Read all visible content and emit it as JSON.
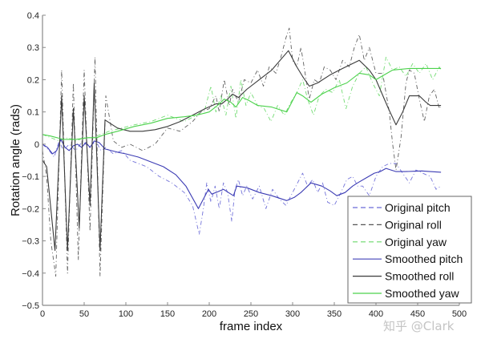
{
  "chart_data": {
    "type": "line",
    "title": "",
    "xlabel": "frame index",
    "ylabel": "Rotation angle (rads)",
    "xlim": [
      0,
      500
    ],
    "ylim": [
      -0.5,
      0.4
    ],
    "xticks": [
      0,
      50,
      100,
      150,
      200,
      250,
      300,
      350,
      400,
      450,
      500
    ],
    "yticks": [
      -0.5,
      -0.4,
      -0.3,
      -0.2,
      -0.1,
      0,
      0.1,
      0.2,
      0.3,
      0.4
    ],
    "xtick_labels": [
      "0",
      "50",
      "100",
      "150",
      "200",
      "250",
      "300",
      "350",
      "400",
      "450",
      "500"
    ],
    "ytick_labels": [
      "-0.5",
      "-0.4",
      "-0.3",
      "-0.2",
      "-0.1",
      "0",
      "0.1",
      "0.2",
      "0.3",
      "0.4"
    ],
    "grid": false,
    "legend_position": "lower right",
    "series": [
      {
        "name": "Original pitch",
        "style": "dashdot",
        "color": "#5a5ad2",
        "x": [
          0,
          8,
          14,
          20,
          25,
          32,
          40,
          48,
          56,
          64,
          70,
          76,
          85,
          95,
          105,
          115,
          125,
          140,
          155,
          170,
          180,
          188,
          193,
          197,
          202,
          207,
          212,
          217,
          222,
          227,
          231,
          235,
          240,
          245,
          252,
          260,
          268,
          276,
          284,
          292,
          300,
          306,
          312,
          318,
          324,
          330,
          336,
          342,
          350,
          358,
          365,
          372,
          378,
          384,
          392,
          400,
          408,
          416,
          424,
          432,
          440,
          448,
          456,
          465,
          472,
          478
        ],
        "y": [
          0.0,
          -0.02,
          -0.04,
          0.01,
          -0.02,
          0.0,
          -0.02,
          0.01,
          -0.01,
          0.01,
          -0.02,
          -0.01,
          -0.03,
          -0.02,
          -0.05,
          -0.06,
          -0.07,
          -0.1,
          -0.12,
          -0.15,
          -0.19,
          -0.28,
          -0.2,
          -0.12,
          -0.18,
          -0.13,
          -0.2,
          -0.12,
          -0.15,
          -0.24,
          -0.14,
          -0.11,
          -0.16,
          -0.13,
          -0.17,
          -0.13,
          -0.2,
          -0.14,
          -0.17,
          -0.19,
          -0.15,
          -0.12,
          -0.09,
          -0.13,
          -0.11,
          -0.15,
          -0.12,
          -0.18,
          -0.19,
          -0.15,
          -0.11,
          -0.1,
          -0.13,
          -0.13,
          -0.16,
          -0.1,
          -0.07,
          -0.06,
          -0.06,
          -0.09,
          -0.12,
          -0.08,
          -0.09,
          -0.1,
          -0.14,
          -0.13
        ]
      },
      {
        "name": "Original roll",
        "style": "dashdot",
        "color": "#444444",
        "x": [
          0,
          5,
          10,
          16,
          23,
          30,
          37,
          43,
          50,
          57,
          63,
          69,
          76,
          85,
          95,
          105,
          120,
          135,
          150,
          165,
          180,
          190,
          200,
          208,
          212,
          218,
          224,
          228,
          235,
          242,
          250,
          258,
          265,
          272,
          280,
          286,
          292,
          296,
          300,
          305,
          310,
          315,
          320,
          326,
          332,
          338,
          345,
          352,
          360,
          368,
          374,
          380,
          386,
          392,
          400,
          408,
          416,
          420,
          424,
          430,
          436,
          440,
          446,
          452,
          458,
          464,
          470,
          476,
          478
        ],
        "y": [
          -0.02,
          -0.1,
          -0.3,
          -0.41,
          0.23,
          -0.4,
          0.19,
          -0.36,
          0.23,
          -0.27,
          0.27,
          -0.41,
          0.15,
          0.01,
          -0.01,
          0.0,
          -0.02,
          0.0,
          0.05,
          0.04,
          0.07,
          0.1,
          0.11,
          0.15,
          0.1,
          0.2,
          0.12,
          0.17,
          0.13,
          0.2,
          0.19,
          0.23,
          0.18,
          0.24,
          0.22,
          0.27,
          0.33,
          0.36,
          0.26,
          0.24,
          0.3,
          0.22,
          0.14,
          0.2,
          0.19,
          0.24,
          0.23,
          0.2,
          0.26,
          0.24,
          0.3,
          0.34,
          0.26,
          0.3,
          0.22,
          0.22,
          0.1,
          0.0,
          -0.08,
          0.02,
          0.19,
          0.23,
          0.22,
          0.14,
          0.07,
          0.15,
          0.17,
          0.11,
          0.12
        ]
      },
      {
        "name": "Original yaw",
        "style": "dashdot",
        "color": "#5cd65c",
        "x": [
          0,
          10,
          20,
          30,
          40,
          50,
          60,
          70,
          80,
          95,
          110,
          130,
          150,
          170,
          185,
          195,
          202,
          208,
          214,
          220,
          226,
          232,
          238,
          244,
          250,
          258,
          266,
          274,
          282,
          290,
          298,
          305,
          312,
          318,
          325,
          332,
          340,
          348,
          356,
          364,
          372,
          380,
          388,
          396,
          404,
          412,
          420,
          428,
          436,
          444,
          452,
          460,
          468,
          476,
          478
        ],
        "y": [
          0.03,
          0.02,
          0.01,
          0.02,
          0.01,
          0.02,
          0.02,
          0.03,
          0.04,
          0.05,
          0.06,
          0.07,
          0.09,
          0.07,
          0.09,
          0.11,
          0.18,
          0.1,
          0.15,
          0.09,
          0.18,
          0.08,
          0.2,
          0.12,
          0.16,
          0.12,
          0.11,
          0.07,
          0.12,
          0.09,
          0.13,
          0.16,
          0.2,
          0.14,
          0.09,
          0.15,
          0.17,
          0.16,
          0.2,
          0.11,
          0.18,
          0.22,
          0.24,
          0.19,
          0.15,
          0.27,
          0.23,
          0.24,
          0.21,
          0.25,
          0.22,
          0.25,
          0.2,
          0.24,
          0.23
        ]
      },
      {
        "name": "Smoothed pitch",
        "style": "solid",
        "color": "#3c3cb4",
        "x": [
          0,
          6,
          12,
          17,
          22,
          27,
          32,
          37,
          42,
          47,
          52,
          57,
          62,
          68,
          75,
          90,
          100,
          115,
          130,
          145,
          160,
          172,
          187,
          199,
          203,
          210,
          217,
          223,
          229,
          233,
          245,
          260,
          275,
          293,
          302,
          310,
          322,
          335,
          345,
          353,
          363,
          372,
          378,
          388,
          398,
          405,
          412,
          418,
          424,
          435,
          445,
          455,
          465,
          478
        ],
        "y": [
          0.0,
          -0.01,
          -0.03,
          -0.02,
          0.015,
          -0.01,
          -0.02,
          -0.005,
          0.0,
          -0.01,
          0.005,
          -0.01,
          0.01,
          0.005,
          -0.015,
          -0.025,
          -0.03,
          -0.04,
          -0.055,
          -0.07,
          -0.095,
          -0.13,
          -0.2,
          -0.14,
          -0.155,
          -0.148,
          -0.14,
          -0.15,
          -0.16,
          -0.13,
          -0.135,
          -0.15,
          -0.16,
          -0.175,
          -0.165,
          -0.15,
          -0.12,
          -0.13,
          -0.145,
          -0.16,
          -0.15,
          -0.13,
          -0.12,
          -0.105,
          -0.09,
          -0.085,
          -0.075,
          -0.08,
          -0.085,
          -0.085,
          -0.084,
          -0.083,
          -0.085,
          -0.087
        ]
      },
      {
        "name": "Smoothed roll",
        "style": "solid",
        "color": "#3a3a3a",
        "x": [
          0,
          5,
          10,
          15,
          23,
          30,
          37,
          44,
          50,
          57,
          62,
          69,
          75,
          90,
          105,
          120,
          135,
          150,
          165,
          180,
          195,
          208,
          215,
          222,
          228,
          235,
          245,
          260,
          275,
          295,
          305,
          312,
          320,
          330,
          345,
          360,
          380,
          392,
          400,
          410,
          415,
          424,
          432,
          440,
          452,
          460,
          465,
          470,
          478
        ],
        "y": [
          -0.05,
          -0.07,
          -0.2,
          -0.33,
          0.15,
          -0.33,
          0.11,
          -0.26,
          0.15,
          -0.19,
          0.19,
          -0.33,
          0.075,
          0.05,
          0.04,
          0.04,
          0.045,
          0.055,
          0.07,
          0.09,
          0.11,
          0.125,
          0.125,
          0.14,
          0.155,
          0.145,
          0.17,
          0.2,
          0.23,
          0.29,
          0.24,
          0.21,
          0.18,
          0.19,
          0.215,
          0.235,
          0.26,
          0.23,
          0.2,
          0.14,
          0.11,
          0.06,
          0.1,
          0.15,
          0.15,
          0.13,
          0.12,
          0.12,
          0.12
        ]
      },
      {
        "name": "Smoothed yaw",
        "style": "solid",
        "color": "#4cd24c",
        "x": [
          0,
          10,
          25,
          40,
          55,
          65,
          75,
          90,
          110,
          130,
          150,
          170,
          185,
          200,
          210,
          218,
          226,
          232,
          240,
          248,
          258,
          275,
          293,
          305,
          312,
          322,
          335,
          350,
          365,
          380,
          392,
          400,
          410,
          420,
          440,
          460,
          478
        ],
        "y": [
          0.03,
          0.025,
          0.015,
          0.015,
          0.02,
          0.02,
          0.03,
          0.04,
          0.055,
          0.065,
          0.08,
          0.085,
          0.09,
          0.1,
          0.12,
          0.14,
          0.13,
          0.115,
          0.145,
          0.135,
          0.12,
          0.115,
          0.1,
          0.16,
          0.15,
          0.13,
          0.155,
          0.175,
          0.19,
          0.22,
          0.215,
          0.2,
          0.215,
          0.23,
          0.235,
          0.235,
          0.235
        ]
      }
    ]
  },
  "legend": {
    "items": [
      {
        "label": "Original pitch",
        "color": "#6a6ad8",
        "dash": "6,4"
      },
      {
        "label": "Original roll",
        "color": "#555555",
        "dash": "6,4"
      },
      {
        "label": "Original yaw",
        "color": "#6ad86a",
        "dash": "6,4"
      },
      {
        "label": "Smoothed pitch",
        "color": "#4444b8",
        "dash": ""
      },
      {
        "label": "Smoothed roll",
        "color": "#3a3a3a",
        "dash": ""
      },
      {
        "label": "Smoothed yaw",
        "color": "#4cd24c",
        "dash": ""
      }
    ]
  },
  "watermark": "知乎 @Clark",
  "axis_color": "#8a8a8a"
}
